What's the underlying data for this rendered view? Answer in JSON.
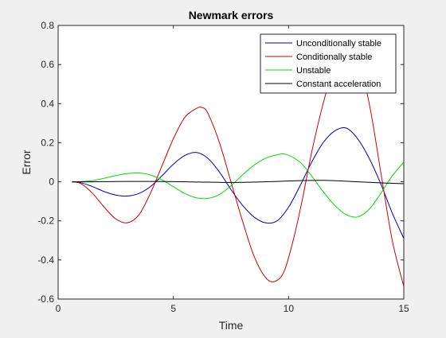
{
  "chart_data": {
    "type": "line",
    "title": "Newmark errors",
    "xlabel": "Time",
    "ylabel": "Error",
    "xlim": [
      0,
      15
    ],
    "ylim": [
      -0.6,
      0.8
    ],
    "xticks": [
      0,
      5,
      10,
      15
    ],
    "yticks": [
      -0.6,
      -0.4,
      -0.2,
      0,
      0.2,
      0.4,
      0.6,
      0.8
    ],
    "xtick_labels": [
      "0",
      "5",
      "10",
      "15"
    ],
    "ytick_labels": [
      "-0.6",
      "-0.4",
      "-0.2",
      "0",
      "0.2",
      "0.4",
      "0.6",
      "0.8"
    ],
    "grid": false,
    "legend_position": "top-right",
    "series": [
      {
        "name": "Unconditionally stable",
        "color": "#0000aa",
        "x": [
          0.6,
          1.0,
          1.5,
          2.0,
          2.5,
          3.0,
          3.5,
          4.0,
          4.5,
          5.0,
          5.5,
          6.0,
          6.5,
          7.0,
          7.5,
          8.0,
          8.5,
          9.0,
          9.5,
          10.0,
          10.5,
          11.0,
          11.5,
          12.0,
          12.5,
          13.0,
          13.5,
          14.0,
          14.5,
          15.0
        ],
        "y": [
          0.0,
          -0.005,
          -0.025,
          -0.05,
          -0.068,
          -0.073,
          -0.06,
          -0.025,
          0.03,
          0.09,
          0.135,
          0.15,
          0.12,
          0.05,
          -0.04,
          -0.12,
          -0.18,
          -0.21,
          -0.2,
          -0.13,
          -0.02,
          0.1,
          0.2,
          0.26,
          0.275,
          0.22,
          0.12,
          -0.01,
          -0.16,
          -0.29
        ]
      },
      {
        "name": "Conditionally stable",
        "color": "#cc0000",
        "x": [
          0.6,
          1.0,
          1.5,
          2.0,
          2.5,
          3.0,
          3.5,
          4.0,
          4.5,
          5.0,
          5.5,
          6.0,
          6.25,
          6.5,
          7.0,
          7.5,
          8.0,
          8.5,
          9.0,
          9.4,
          9.8,
          10.2,
          10.6,
          11.0,
          11.5,
          12.0,
          12.5,
          12.9,
          13.5,
          14.0,
          14.5,
          15.0
        ],
        "y": [
          0.0,
          -0.01,
          -0.06,
          -0.13,
          -0.19,
          -0.21,
          -0.17,
          -0.06,
          0.08,
          0.22,
          0.33,
          0.375,
          0.38,
          0.35,
          0.2,
          0.0,
          -0.2,
          -0.38,
          -0.49,
          -0.51,
          -0.46,
          -0.3,
          -0.09,
          0.15,
          0.4,
          0.6,
          0.7,
          0.68,
          0.4,
          0.05,
          -0.3,
          -0.535
        ]
      },
      {
        "name": "Unstable",
        "color": "#00dd00",
        "x": [
          0.6,
          1.0,
          1.5,
          2.0,
          2.5,
          3.0,
          3.5,
          4.0,
          4.5,
          5.0,
          5.5,
          6.0,
          6.5,
          7.0,
          7.5,
          8.0,
          8.5,
          9.0,
          9.5,
          9.9,
          10.5,
          11.0,
          11.5,
          12.0,
          12.5,
          13.0,
          13.5,
          14.0,
          14.5,
          15.0
        ],
        "y": [
          0.0,
          0.001,
          0.006,
          0.018,
          0.032,
          0.042,
          0.045,
          0.035,
          0.01,
          -0.025,
          -0.06,
          -0.082,
          -0.085,
          -0.065,
          -0.02,
          0.035,
          0.085,
          0.12,
          0.138,
          0.14,
          0.1,
          0.03,
          -0.05,
          -0.12,
          -0.168,
          -0.18,
          -0.14,
          -0.06,
          0.03,
          0.1
        ]
      },
      {
        "name": "Constant acceleration",
        "color": "#000000",
        "x": [
          0.6,
          1.5,
          2.5,
          3.5,
          4.5,
          5.5,
          6.5,
          7.5,
          8.5,
          9.5,
          10.5,
          11.5,
          12.5,
          13.5,
          14.5,
          15.0
        ],
        "y": [
          0.0,
          0.0,
          0.0015,
          0.002,
          0.0015,
          0.0,
          -0.002,
          -0.0035,
          -0.002,
          0.002,
          0.006,
          0.0075,
          0.003,
          -0.003,
          -0.008,
          -0.01
        ]
      }
    ]
  }
}
